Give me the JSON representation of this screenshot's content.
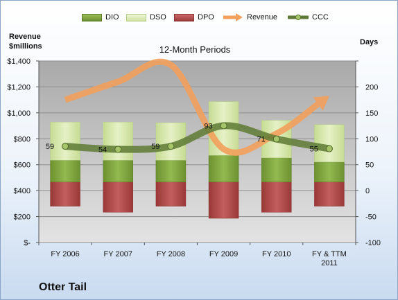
{
  "chart_data": {
    "type": "bar",
    "title": "12-Month Periods",
    "company": "Otter Tail",
    "left_axis_title": [
      "Revenue",
      "$millions"
    ],
    "right_axis_title": "Days",
    "categories": [
      "FY 2006",
      "FY 2007",
      "FY 2008",
      "FY 2009",
      "FY 2010",
      "FY & TTM 2011"
    ],
    "left_ticks": [
      "$-",
      "$200",
      "$400",
      "$600",
      "$800",
      "$1,000",
      "$1,200",
      "$1,400"
    ],
    "right_ticks": [
      "-100",
      "-50",
      "0",
      "50",
      "100",
      "150",
      "200"
    ],
    "ylim_left": [
      0,
      1400
    ],
    "ylim_right": [
      -100,
      200
    ],
    "series": [
      {
        "name": "DIO",
        "kind": "bar-stacked-positive",
        "color": "#7fa33a",
        "values": [
          36,
          36,
          36,
          44,
          40,
          33
        ]
      },
      {
        "name": "DSO",
        "kind": "bar-stacked-positive",
        "color": "#d6e8a8",
        "values": [
          63,
          63,
          62,
          89,
          62,
          62
        ]
      },
      {
        "name": "DPO",
        "kind": "bar-negative",
        "color": "#b54a4a",
        "values": [
          -40,
          -50,
          -40,
          -60,
          -50,
          -40
        ]
      },
      {
        "name": "Revenue",
        "kind": "line-left-axis",
        "color": "#f2a05c",
        "values": [
          1100,
          1240,
          1370,
          720,
          840,
          1130
        ]
      },
      {
        "name": "CCC",
        "kind": "line-right-axis",
        "color": "#5e7a34",
        "values": [
          59,
          54,
          59,
          93,
          71,
          55
        ],
        "labels": [
          "59",
          "54",
          "59",
          "93",
          "71",
          "55"
        ]
      }
    ]
  }
}
